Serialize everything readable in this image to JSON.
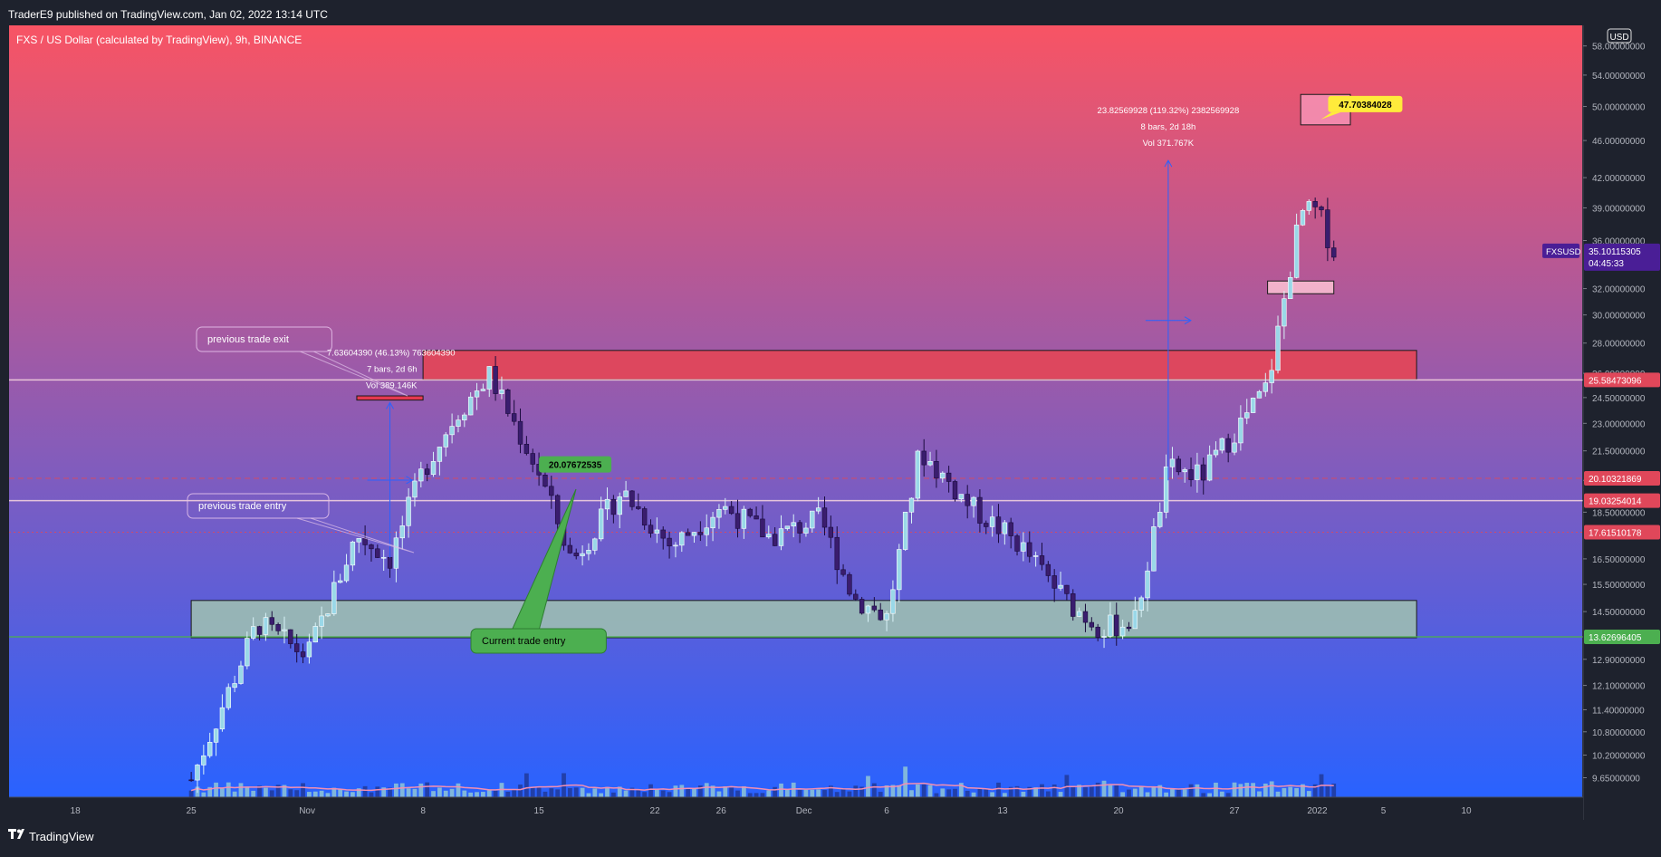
{
  "header": {
    "publish_line": "TraderE9 published on TradingView.com, Jan 02, 2022 13:14 UTC"
  },
  "footer": {
    "brand": "TradingView",
    "logo_icon": "tradingview-logo-icon"
  },
  "colors": {
    "bg_top": "#f85464",
    "bg_bottom": "#2962ff",
    "candle_up": "#9ad8e8",
    "candle_down": "#3a1d6e",
    "supply_zone": "#e0475a",
    "demand_zone": "#9ab8b4",
    "callout_green": "#4caf50",
    "price_tag_purple": "#4a1e96",
    "highlight_yellow": "#ffeb3b"
  },
  "chart_data": {
    "type": "candlestick",
    "title": "FXS / US Dollar (calculated by TradingView), 9h, BINANCE",
    "currency": "USD",
    "y_scale": "log",
    "ylim": [
      9.2,
      61
    ],
    "price_axis_labels": [
      "58.00000000",
      "54.00000000",
      "50.00000000",
      "46.00000000",
      "42.00000000",
      "39.00000000",
      "36.00000000",
      "32.00000000",
      "30.00000000",
      "28.00000000",
      "26.00000000",
      "24.50000000",
      "23.00000000",
      "21.50000000",
      "20.00000000",
      "18.50000000",
      "16.50000000",
      "15.50000000",
      "14.50000000",
      "12.90000000",
      "12.10000000",
      "11.40000000",
      "10.80000000",
      "10.20000000",
      "9.65000000"
    ],
    "price_axis_values": [
      58,
      54,
      50,
      46,
      42,
      39,
      36,
      32,
      30,
      28,
      26,
      24.5,
      23,
      21.5,
      20,
      18.5,
      16.5,
      15.5,
      14.5,
      12.9,
      12.1,
      11.4,
      10.8,
      10.2,
      9.65
    ],
    "time_axis_labels": [
      "18",
      "25",
      "Nov",
      "8",
      "15",
      "22",
      "26",
      "Dec",
      "6",
      "13",
      "20",
      "27",
      "2022",
      "5",
      "10"
    ],
    "time_axis_dates": [
      "2021-10-18",
      "2021-10-25",
      "2021-11-01",
      "2021-11-08",
      "2021-11-15",
      "2021-11-22",
      "2021-11-26",
      "2021-12-01",
      "2021-12-06",
      "2021-12-13",
      "2021-12-20",
      "2021-12-27",
      "2022-01-01",
      "2022-01-05",
      "2022-01-10"
    ],
    "last_price": {
      "symbol": "FXSUSD",
      "price": "35.10115305",
      "countdown": "04:45:33"
    },
    "price_levels": [
      {
        "label": "25.58473096",
        "value": 25.585,
        "color": "#e0475a",
        "style": "solid"
      },
      {
        "label": "20.10321869",
        "value": 20.103,
        "color": "#e0475a",
        "style": "dashed"
      },
      {
        "label": "19.03254014",
        "value": 19.033,
        "color": "#e0475a",
        "style": "solid"
      },
      {
        "label": "17.61510178",
        "value": 17.615,
        "color": "#e0475a",
        "style": "dotted"
      },
      {
        "label": "13.62696405",
        "value": 13.627,
        "color": "#4caf50",
        "style": "solid"
      }
    ],
    "zones": [
      {
        "kind": "supply",
        "x0": "2021-11-08",
        "x1": "2022-01-07",
        "y0": 25.6,
        "y1": 27.5
      },
      {
        "kind": "demand",
        "x0": "2021-10-25",
        "x1": "2022-01-07",
        "y0": 13.6,
        "y1": 14.9
      },
      {
        "kind": "target",
        "x0": "2021-12-31",
        "x1": "2022-01-03",
        "y0": 47.8,
        "y1": 51.5
      },
      {
        "kind": "small",
        "x0": "2021-12-29",
        "x1": "2022-01-02",
        "y0": 31.6,
        "y1": 32.6
      },
      {
        "kind": "exit",
        "x0": "2021-11-04",
        "x1": "2021-11-08",
        "y0": 24.35,
        "y1": 24.6
      }
    ],
    "measures": [
      {
        "line1": "7.63604390 (46.13%) 763604390",
        "line2": "7 bars, 2d 6h",
        "line3": "Vol 389.146K",
        "x": "2021-11-06",
        "y0": 16.55,
        "y1": 24.2
      },
      {
        "line1": "23.82569928 (119.32%) 2382569928",
        "line2": "8 bars, 2d 18h",
        "line3": "Vol 371.767K",
        "x": "2021-12-23",
        "y0": 20.0,
        "y1": 43.8
      }
    ],
    "callouts": [
      {
        "text": "previous trade exit",
        "style": "outline"
      },
      {
        "text": "previous trade entry",
        "style": "outline"
      },
      {
        "text": "Current trade entry",
        "style": "green"
      }
    ],
    "price_labels": [
      {
        "text": "20.07672535",
        "style": "green",
        "x": "2021-11-15",
        "y": 20.8
      },
      {
        "text": "47.70384028",
        "style": "yellow",
        "x": "2022-01-01",
        "y": 50.3
      }
    ],
    "anchors": [
      {
        "date": "2021-10-25",
        "price": 9.6
      },
      {
        "date": "2021-10-29",
        "price": 14.1
      },
      {
        "date": "2021-11-01",
        "price": 13.0
      },
      {
        "date": "2021-11-04",
        "price": 17.5
      },
      {
        "date": "2021-11-06",
        "price": 16.5
      },
      {
        "date": "2021-11-08",
        "price": 20.5
      },
      {
        "date": "2021-11-10",
        "price": 23.5
      },
      {
        "date": "2021-11-12",
        "price": 25.9
      },
      {
        "date": "2021-11-15",
        "price": 20.4
      },
      {
        "date": "2021-11-17",
        "price": 16.4
      },
      {
        "date": "2021-11-20",
        "price": 19.5
      },
      {
        "date": "2021-11-23",
        "price": 17.0
      },
      {
        "date": "2021-11-26",
        "price": 18.8
      },
      {
        "date": "2021-11-29",
        "price": 17.4
      },
      {
        "date": "2021-12-02",
        "price": 18.2
      },
      {
        "date": "2021-12-04",
        "price": 15.0
      },
      {
        "date": "2021-12-06",
        "price": 14.3
      },
      {
        "date": "2021-12-08",
        "price": 21.5
      },
      {
        "date": "2021-12-11",
        "price": 18.8
      },
      {
        "date": "2021-12-14",
        "price": 17.1
      },
      {
        "date": "2021-12-17",
        "price": 14.8
      },
      {
        "date": "2021-12-19",
        "price": 13.9
      },
      {
        "date": "2021-12-21",
        "price": 14.2
      },
      {
        "date": "2021-12-23",
        "price": 20.6
      },
      {
        "date": "2021-12-25",
        "price": 20.2
      },
      {
        "date": "2021-12-28",
        "price": 23.8
      },
      {
        "date": "2021-12-29",
        "price": 25.2
      },
      {
        "date": "2021-12-31",
        "price": 38.5
      },
      {
        "date": "2022-01-01",
        "price": 38.7
      },
      {
        "date": "2022-01-02",
        "price": 35.1
      }
    ],
    "x_range": [
      "2021-10-14",
      "2022-01-17"
    ],
    "volume_scale_max": 100
  }
}
